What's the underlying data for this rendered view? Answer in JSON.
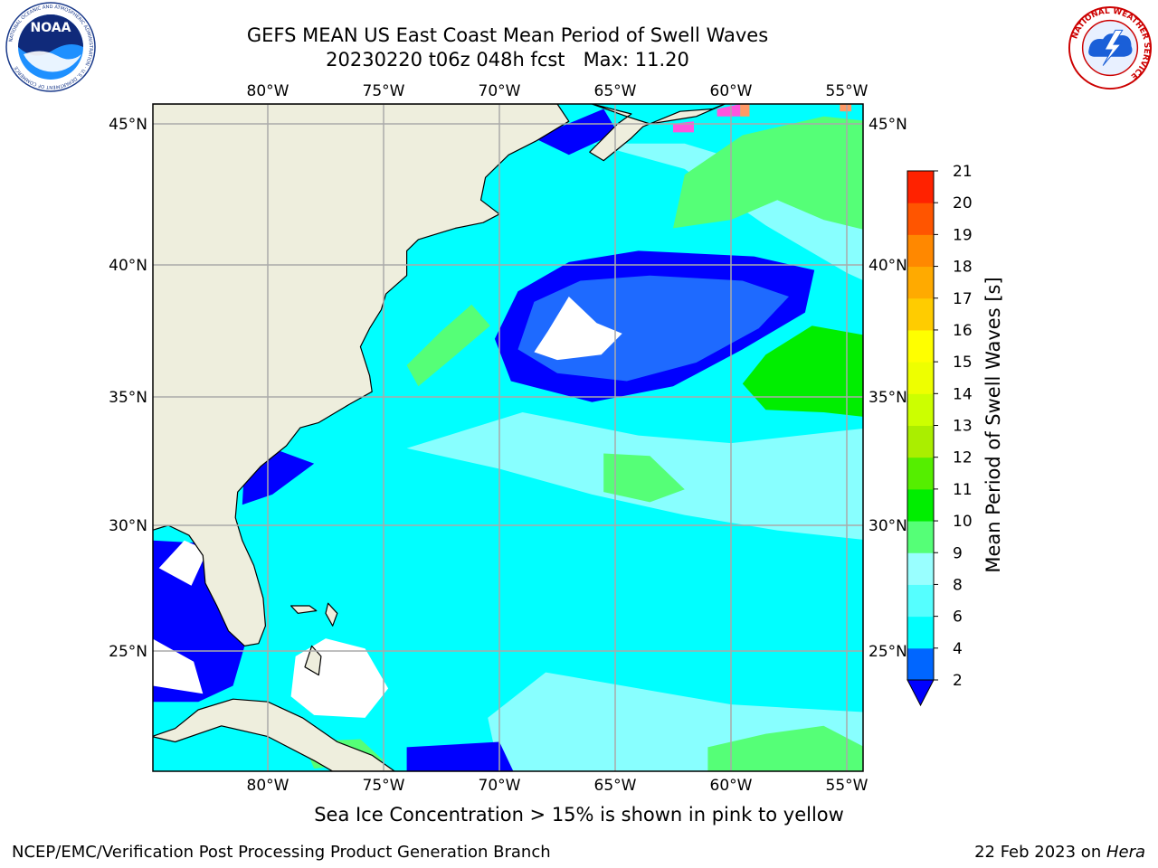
{
  "header": {
    "title_line1": "GEFS MEAN US East Coast Mean Period of Swell Waves",
    "title_line2": "20230220 t06z 048h fcst   Max: 11.20"
  },
  "logos": {
    "left": {
      "icon": "noaa-logo-icon",
      "text": "NOAA",
      "ring_text": "NATIONAL OCEANIC AND ATMOSPHERIC ADMINISTRATION · U.S. DEPARTMENT OF COMMERCE"
    },
    "right": {
      "icon": "nws-logo-icon",
      "ring_text": "NATIONAL WEATHER SERVICE"
    }
  },
  "map": {
    "lon_range": [
      -85,
      -54
    ],
    "lat_range": [
      20.5,
      45.8
    ],
    "lon_ticks": [
      {
        "value": -80,
        "label": "80°W"
      },
      {
        "value": -75,
        "label": "75°W"
      },
      {
        "value": -70,
        "label": "70°W"
      },
      {
        "value": -65,
        "label": "65°W"
      },
      {
        "value": -60,
        "label": "60°W"
      },
      {
        "value": -55,
        "label": "55°W"
      }
    ],
    "lat_ticks": [
      {
        "value": 45,
        "label": "45°N"
      },
      {
        "value": 40,
        "label": "40°N"
      },
      {
        "value": 35,
        "label": "35°N"
      },
      {
        "value": 30,
        "label": "30°N"
      },
      {
        "value": 25,
        "label": "25°N"
      }
    ],
    "colors": {
      "land": "#eeeedd",
      "ocean_base": "#00ffff",
      "gridline": "#aaaaaa",
      "coastline": "#000000",
      "no_swell": "#ffffff",
      "sea_ice": "#ff55dd"
    },
    "regions": [
      {
        "name": "deep-blue-swell-core",
        "value_s": 3,
        "color": "#0000ff",
        "points": [
          [
            -69.2,
            39.0
          ],
          [
            -67,
            40.1
          ],
          [
            -64,
            40.5
          ],
          [
            -59,
            40.3
          ],
          [
            -56.4,
            39.8
          ],
          [
            -56.8,
            38.2
          ],
          [
            -59.5,
            36.8
          ],
          [
            -62.5,
            35.4
          ],
          [
            -66,
            34.8
          ],
          [
            -69.5,
            35.6
          ],
          [
            -70.2,
            37.2
          ]
        ]
      },
      {
        "name": "mid-blue-swell-core",
        "value_s": 3,
        "color": "#1e6aff",
        "points": [
          [
            -68.5,
            38.6
          ],
          [
            -66.5,
            39.4
          ],
          [
            -63.5,
            39.6
          ],
          [
            -59.5,
            39.4
          ],
          [
            -57.5,
            38.8
          ],
          [
            -58.8,
            37.6
          ],
          [
            -61.5,
            36.3
          ],
          [
            -64.5,
            35.6
          ],
          [
            -67.5,
            35.9
          ],
          [
            -69.2,
            36.8
          ]
        ]
      },
      {
        "name": "no-swell-patch-central",
        "value_s": 0,
        "color": "#ffffff",
        "points": [
          [
            -67,
            38.8
          ],
          [
            -65.8,
            37.8
          ],
          [
            -64.7,
            37.4
          ],
          [
            -65.6,
            36.6
          ],
          [
            -67.5,
            36.4
          ],
          [
            -68.5,
            36.7
          ],
          [
            -67.9,
            37.5
          ]
        ]
      },
      {
        "name": "green-swell-offshore-carolina",
        "value_s": 9,
        "color": "#55ff77",
        "points": [
          [
            -71.2,
            38.5
          ],
          [
            -70.4,
            37.7
          ],
          [
            -72,
            36.5
          ],
          [
            -73.5,
            35.4
          ],
          [
            -74,
            36.2
          ],
          [
            -72.5,
            37.5
          ]
        ]
      },
      {
        "name": "green-swell-southeast",
        "value_s": 10,
        "color": "#00ee00",
        "points": [
          [
            -54,
            37.3
          ],
          [
            -56.5,
            37.7
          ],
          [
            -58.5,
            36.6
          ],
          [
            -59.5,
            35.5
          ],
          [
            -58.5,
            34.5
          ],
          [
            -56,
            34.4
          ],
          [
            -54,
            34.2
          ]
        ]
      },
      {
        "name": "green-swell-northeast",
        "value_s": 9,
        "color": "#55ff77",
        "points": [
          [
            -62,
            43.2
          ],
          [
            -59.5,
            44.6
          ],
          [
            -56,
            45.3
          ],
          [
            -54,
            45.1
          ],
          [
            -54,
            41.2
          ],
          [
            -56,
            41.6
          ],
          [
            -58,
            42.3
          ],
          [
            -60,
            41.6
          ],
          [
            -62.5,
            41.3
          ]
        ]
      },
      {
        "name": "green-swell-bermuda",
        "value_s": 9,
        "color": "#55ff77",
        "points": [
          [
            -65.5,
            32.8
          ],
          [
            -63.5,
            32.7
          ],
          [
            -62,
            31.4
          ],
          [
            -63.5,
            30.9
          ],
          [
            -65.5,
            31.3
          ]
        ]
      },
      {
        "name": "green-swell-south",
        "value_s": 9,
        "color": "#55ff77",
        "points": [
          [
            -78.5,
            21.6
          ],
          [
            -76,
            21.7
          ],
          [
            -75,
            20.9
          ],
          [
            -78,
            20.6
          ]
        ]
      },
      {
        "name": "green-swell-southeast-corner",
        "value_s": 9,
        "color": "#55ff77",
        "points": [
          [
            -61,
            21.4
          ],
          [
            -58.5,
            21.9
          ],
          [
            -56,
            22.2
          ],
          [
            -54,
            21.3
          ],
          [
            -54,
            20.5
          ],
          [
            -61,
            20.5
          ]
        ]
      },
      {
        "name": "deep-blue-swell-gulf",
        "value_s": 3,
        "color": "#0000ff",
        "points": [
          [
            -85,
            29.4
          ],
          [
            -83,
            29.3
          ],
          [
            -81.5,
            26.5
          ],
          [
            -81,
            25.2
          ],
          [
            -81.5,
            23.7
          ],
          [
            -83,
            23.1
          ],
          [
            -85,
            23.1
          ]
        ]
      },
      {
        "name": "no-swell-patch-gulf",
        "value_s": 0,
        "color": "#ffffff",
        "points": [
          [
            -83.6,
            29.4
          ],
          [
            -82.6,
            29
          ],
          [
            -83.3,
            27.6
          ],
          [
            -84.7,
            28.3
          ]
        ]
      },
      {
        "name": "no-swell-patch-gulf-south",
        "value_s": 0,
        "color": "#ffffff",
        "points": [
          [
            -85,
            25.5
          ],
          [
            -83.2,
            24.6
          ],
          [
            -82.8,
            23.4
          ],
          [
            -85,
            23.7
          ]
        ]
      },
      {
        "name": "no-swell-patch-bahamas",
        "value_s": 0,
        "color": "#ffffff",
        "points": [
          [
            -78.8,
            24.8
          ],
          [
            -77.5,
            25.5
          ],
          [
            -75.8,
            25.1
          ],
          [
            -74.8,
            23.6
          ],
          [
            -75.8,
            22.5
          ],
          [
            -78,
            22.6
          ],
          [
            -79,
            23.3
          ]
        ]
      },
      {
        "name": "deep-blue-swell-carolina",
        "value_s": 3,
        "color": "#0000ff",
        "points": [
          [
            -81,
            32.4
          ],
          [
            -79.5,
            32.9
          ],
          [
            -78,
            32.4
          ],
          [
            -79.8,
            31.2
          ],
          [
            -81.1,
            30.8
          ]
        ]
      },
      {
        "name": "deep-blue-swell-caribbean",
        "value_s": 3,
        "color": "#0000ff",
        "points": [
          [
            -74,
            21.4
          ],
          [
            -70,
            21.6
          ],
          [
            -69.4,
            20.5
          ],
          [
            -74,
            20.5
          ]
        ]
      },
      {
        "name": "deep-blue-swell-gulf-of-maine",
        "value_s": 3,
        "color": "#0000ff",
        "points": [
          [
            -68.5,
            44.5
          ],
          [
            -65.5,
            45.6
          ],
          [
            -64.9,
            44.7
          ],
          [
            -67,
            43.9
          ]
        ]
      }
    ],
    "light_bands": [
      {
        "name": "pale-cyan-band-north",
        "value_s": 8,
        "color": "#88ffff",
        "points": [
          [
            -66,
            44.3
          ],
          [
            -62,
            43.4
          ],
          [
            -58.5,
            41.4
          ],
          [
            -55,
            39.7
          ],
          [
            -54,
            39.3
          ],
          [
            -54,
            42.2
          ],
          [
            -58,
            43.3
          ],
          [
            -62,
            44.3
          ]
        ]
      },
      {
        "name": "pale-cyan-band-central",
        "value_s": 8,
        "color": "#88ffff",
        "points": [
          [
            -74,
            33
          ],
          [
            -69,
            34.4
          ],
          [
            -64,
            33.5
          ],
          [
            -60,
            33.2
          ],
          [
            -56,
            33.6
          ],
          [
            -54,
            33.8
          ],
          [
            -54,
            29.4
          ],
          [
            -58,
            29.8
          ],
          [
            -62,
            30.4
          ],
          [
            -66,
            31.2
          ],
          [
            -70,
            32.2
          ]
        ]
      },
      {
        "name": "pale-cyan-band-south",
        "value_s": 8,
        "color": "#88ffff",
        "points": [
          [
            -68,
            24.2
          ],
          [
            -64,
            23.6
          ],
          [
            -60,
            23
          ],
          [
            -56,
            22.8
          ],
          [
            -54,
            22.7
          ],
          [
            -54,
            20.5
          ],
          [
            -70,
            20.5
          ],
          [
            -70.5,
            22.5
          ]
        ]
      }
    ],
    "land_polygons": [
      {
        "name": "north-america-mainland",
        "points": [
          [
            -85,
            45.8
          ],
          [
            -67.5,
            45.8
          ],
          [
            -67,
            45.1
          ],
          [
            -68.4,
            44.4
          ],
          [
            -69.6,
            43.9
          ],
          [
            -70.6,
            43.1
          ],
          [
            -70.8,
            42.3
          ],
          [
            -70.0,
            41.8
          ],
          [
            -70.7,
            41.5
          ],
          [
            -71.9,
            41.3
          ],
          [
            -73.5,
            40.9
          ],
          [
            -74.0,
            40.5
          ],
          [
            -74.0,
            39.6
          ],
          [
            -74.9,
            38.9
          ],
          [
            -75.1,
            38.3
          ],
          [
            -75.6,
            37.6
          ],
          [
            -76.0,
            36.9
          ],
          [
            -75.6,
            35.8
          ],
          [
            -75.5,
            35.2
          ],
          [
            -76.5,
            34.7
          ],
          [
            -77.8,
            34.0
          ],
          [
            -78.6,
            33.8
          ],
          [
            -79.2,
            33.1
          ],
          [
            -80.3,
            32.3
          ],
          [
            -81.3,
            31.3
          ],
          [
            -81.4,
            30.3
          ],
          [
            -81.1,
            29.4
          ],
          [
            -80.6,
            28.4
          ],
          [
            -80.2,
            27.1
          ],
          [
            -80.1,
            26.0
          ],
          [
            -80.4,
            25.3
          ],
          [
            -81.0,
            25.2
          ],
          [
            -81.7,
            25.8
          ],
          [
            -82.2,
            26.8
          ],
          [
            -82.7,
            27.7
          ],
          [
            -82.8,
            28.8
          ],
          [
            -83.4,
            29.6
          ],
          [
            -84.3,
            30.0
          ],
          [
            -85,
            29.8
          ]
        ]
      },
      {
        "name": "nova-scotia",
        "points": [
          [
            -66,
            45.8
          ],
          [
            -64.5,
            45.3
          ],
          [
            -63.5,
            45.0
          ],
          [
            -61.5,
            45.3
          ],
          [
            -60.0,
            45.9
          ],
          [
            -60.8,
            45.6
          ],
          [
            -62.2,
            45.5
          ],
          [
            -63.8,
            44.9
          ],
          [
            -64.3,
            44.5
          ],
          [
            -65.5,
            43.7
          ],
          [
            -66.1,
            44.0
          ],
          [
            -64.9,
            45.0
          ],
          [
            -64.3,
            45.4
          ]
        ]
      },
      {
        "name": "cuba",
        "points": [
          [
            -85,
            21.8
          ],
          [
            -84.0,
            22.1
          ],
          [
            -83.0,
            22.8
          ],
          [
            -81.5,
            23.2
          ],
          [
            -80.0,
            23.1
          ],
          [
            -78.5,
            22.5
          ],
          [
            -77.0,
            21.6
          ],
          [
            -75.5,
            21.1
          ],
          [
            -74.2,
            20.3
          ],
          [
            -74.5,
            20.5
          ],
          [
            -77.2,
            20.5
          ],
          [
            -78.0,
            20.9
          ],
          [
            -80.0,
            21.8
          ],
          [
            -82.0,
            22.2
          ],
          [
            -84.0,
            21.6
          ]
        ]
      },
      {
        "name": "andros-island",
        "points": [
          [
            -78.1,
            25.2
          ],
          [
            -77.7,
            24.8
          ],
          [
            -77.8,
            24.1
          ],
          [
            -78.4,
            24.4
          ]
        ]
      },
      {
        "name": "grand-bahama",
        "points": [
          [
            -79,
            26.8
          ],
          [
            -78.2,
            26.8
          ],
          [
            -77.9,
            26.6
          ],
          [
            -78.7,
            26.5
          ]
        ]
      },
      {
        "name": "abaco",
        "points": [
          [
            -77.4,
            26.9
          ],
          [
            -77.0,
            26.5
          ],
          [
            -77.2,
            26.0
          ],
          [
            -77.5,
            26.5
          ]
        ]
      }
    ],
    "sea_ice": [
      {
        "points": [
          [
            -60.6,
            45.6
          ],
          [
            -59.6,
            45.8
          ],
          [
            -59.6,
            45.3
          ],
          [
            -60.6,
            45.3
          ]
        ],
        "color": "#ff55dd"
      },
      {
        "points": [
          [
            -62.5,
            45.0
          ],
          [
            -61.6,
            45.1
          ],
          [
            -61.6,
            44.7
          ],
          [
            -62.5,
            44.7
          ]
        ],
        "color": "#ff55dd"
      },
      {
        "points": [
          [
            -59.6,
            45.8
          ],
          [
            -59.2,
            45.8
          ],
          [
            -59.2,
            45.3
          ],
          [
            -59.6,
            45.3
          ]
        ],
        "color": "#ff9966"
      },
      {
        "points": [
          [
            -55.3,
            45.8
          ],
          [
            -54.8,
            45.8
          ],
          [
            -54.8,
            45.5
          ],
          [
            -55.3,
            45.5
          ]
        ],
        "color": "#ff9966"
      }
    ]
  },
  "colorbar": {
    "label": "Mean Period of Swell Waves [s]",
    "ticks": [
      "2",
      "4",
      "6",
      "8",
      "9",
      "10",
      "11",
      "12",
      "13",
      "14",
      "15",
      "16",
      "17",
      "18",
      "19",
      "20",
      "21"
    ],
    "colors": [
      "#0066ff",
      "#00ffff",
      "#55ffff",
      "#99ffff",
      "#55ff77",
      "#00ee00",
      "#55ee00",
      "#aaee00",
      "#ccff00",
      "#eeff00",
      "#ffff00",
      "#ffcc00",
      "#ffaa00",
      "#ff8800",
      "#ff5500",
      "#ff2200"
    ],
    "extend_color": "#0000ff"
  },
  "caption": "Sea Ice Concentration > 15% is shown in pink to yellow",
  "footer": {
    "left": "NCEP/EMC/Verification Post Processing Product Generation Branch",
    "date": "22 Feb 2023 on ",
    "host": "Hera"
  }
}
